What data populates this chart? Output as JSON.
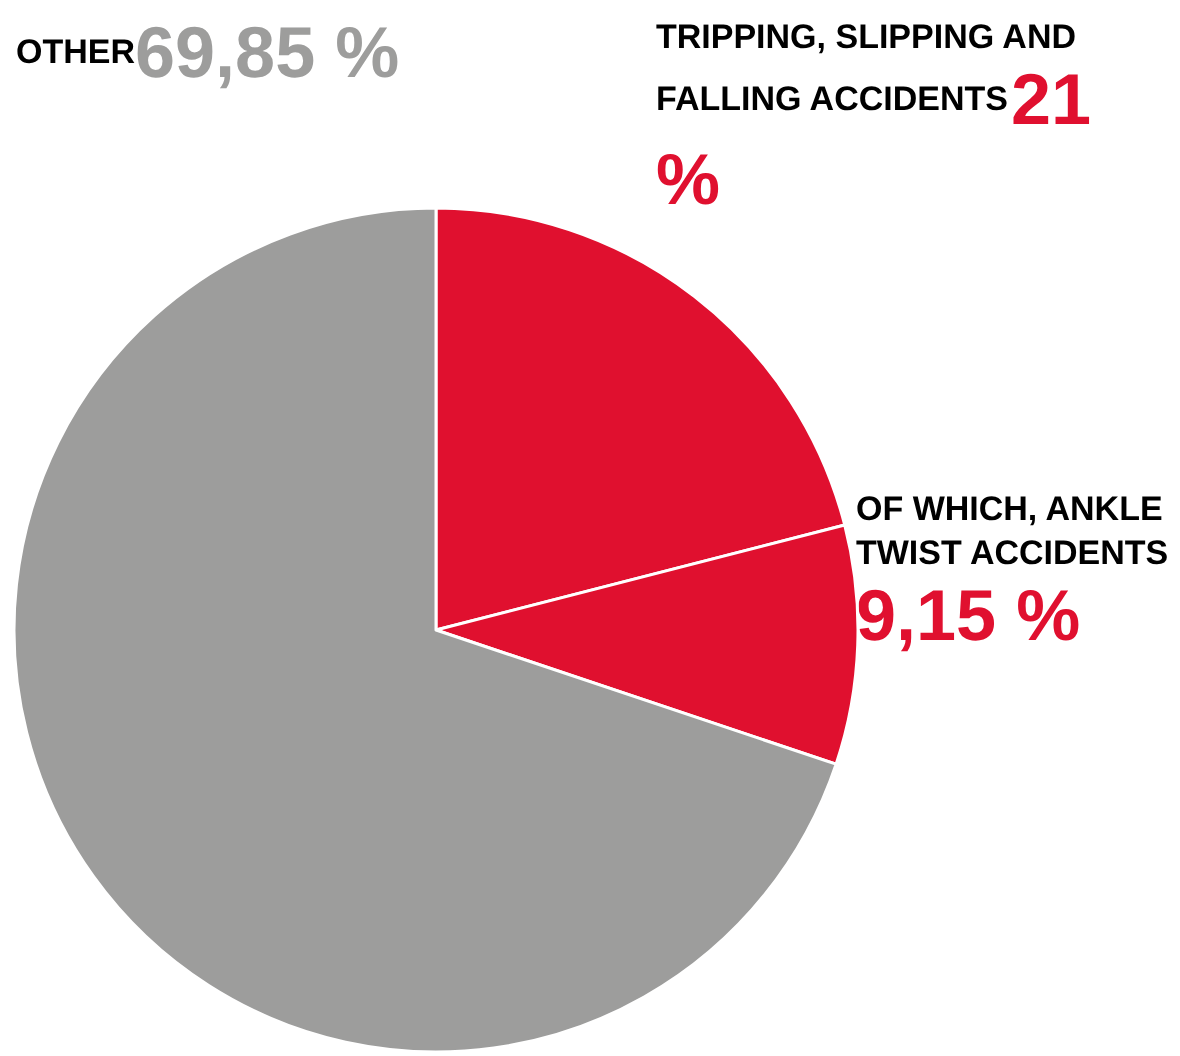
{
  "chart_data": {
    "type": "pie",
    "categories": [
      "TRIPPING, SLIPPING AND FALLING ACCIDENTS",
      "OF WHICH, ANKLE TWIST ACCIDENTS",
      "OTHER"
    ],
    "values": [
      21,
      9.15,
      69.85
    ],
    "colors": [
      "#e0102f",
      "#e0102f",
      "#9d9d9c"
    ],
    "value_labels": [
      "21 %",
      "9,15 %",
      "69,85 %"
    ],
    "legend": false
  }
}
